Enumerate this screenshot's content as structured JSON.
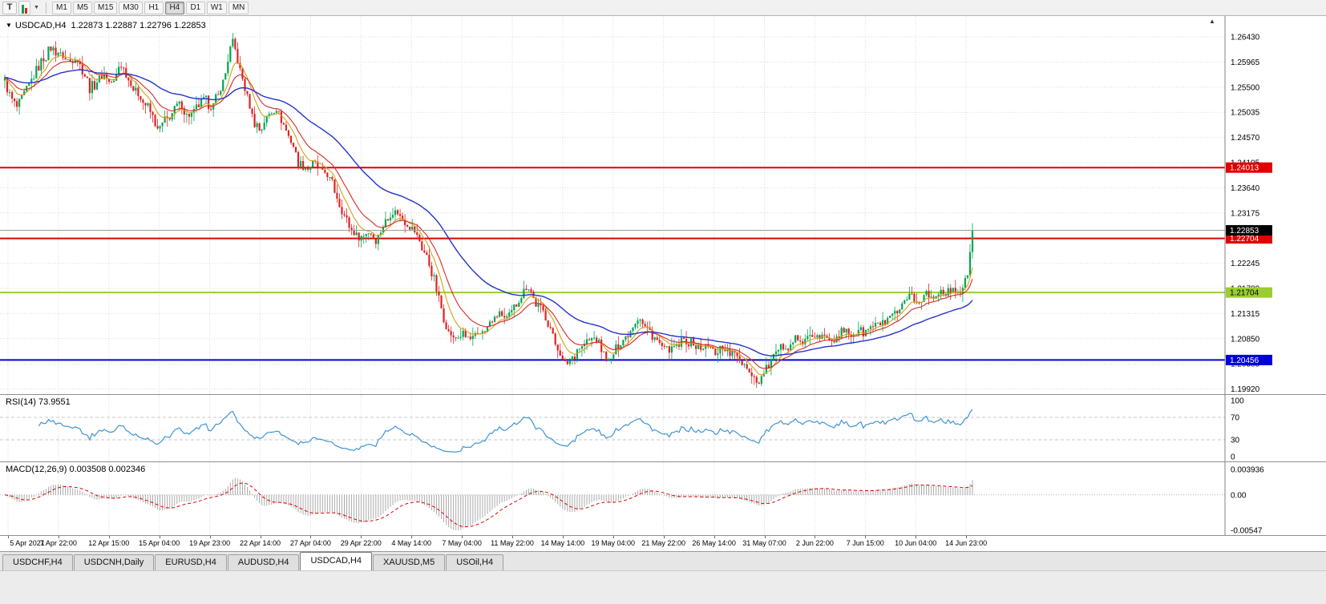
{
  "toolbar": {
    "text_tool": "T",
    "dropdown_icon": "▼",
    "timeframes": [
      "M1",
      "M5",
      "M15",
      "M30",
      "H1",
      "H4",
      "D1",
      "W1",
      "MN"
    ],
    "active_timeframe": "H4"
  },
  "chart": {
    "dropdown_icon": "▼",
    "symbol": "USDCAD,H4",
    "ohlc": "1.22873 1.22887 1.22796 1.22853"
  },
  "price_axis": {
    "labels": [
      "1.26430",
      "1.25965",
      "1.25500",
      "1.25035",
      "1.24570",
      "1.24105",
      "1.23640",
      "1.23175",
      "1.22710",
      "1.22245",
      "1.21780",
      "1.21315",
      "1.20850",
      "1.20385",
      "1.19920"
    ],
    "top_value": 1.2643,
    "step_value": 0.00465
  },
  "hlines": [
    {
      "label": "1.24013",
      "value": 1.24013,
      "color": "#e00000",
      "text_color": "#ffffff"
    },
    {
      "label": "1.22704",
      "value": 1.22704,
      "color": "#e00000",
      "text_color": "#ffffff"
    },
    {
      "label": "1.21704",
      "value": 1.21704,
      "color": "#9acd32",
      "text_color": "#000000"
    },
    {
      "label": "1.20456",
      "value": 1.20456,
      "color": "#0000dd",
      "text_color": "#ffffff"
    }
  ],
  "current_price": {
    "label": "1.22853",
    "value": 1.22853
  },
  "rsi": {
    "label": "RSI(14) 73.9551",
    "period": 14,
    "current": 73.9551,
    "scale_labels": [
      "100",
      "70",
      "30",
      "0"
    ],
    "scale_values": [
      100,
      70,
      30,
      0
    ],
    "levels": [
      70,
      30
    ]
  },
  "macd": {
    "label": "MACD(12,26,9) 0.003508 0.002346",
    "fast": 12,
    "slow": 26,
    "signal": 9,
    "current": 0.003508,
    "signal_current": 0.002346,
    "scale_max": "0.003936",
    "scale_zero": "0.00",
    "scale_min": "-0.00547",
    "max_value": 0.003936,
    "min_value": -0.00547
  },
  "time_axis": [
    "5 Apr 2021",
    "7 Apr 22:00",
    "12 Apr 15:00",
    "15 Apr 04:00",
    "19 Apr 23:00",
    "22 Apr 14:00",
    "27 Apr 04:00",
    "29 Apr 22:00",
    "4 May 14:00",
    "7 May 04:00",
    "11 May 22:00",
    "14 May 14:00",
    "19 May 04:00",
    "21 May 22:00",
    "26 May 14:00",
    "31 May 07:00",
    "2 Jun 22:00",
    "7 Jun 15:00",
    "10 Jun 04:00",
    "14 Jun 23:00"
  ],
  "tabs": [
    "USDCHF,H4",
    "USDCNH,Daily",
    "EURUSD,H4",
    "AUDUSD,H4",
    "USDCAD,H4",
    "XAUUSD,M5",
    "USOil,H4"
  ],
  "active_tab": "USDCAD,H4",
  "colors": {
    "bull": "#00a651",
    "bear": "#dd2222",
    "ma_fast": "#d4a017",
    "ma_med": "#d42a2a",
    "ma_slow": "#2233cc",
    "grid": "#dcdcdc",
    "price_line": "#9a9a9a",
    "macd_hist": "#aaaaaa",
    "macd_signal": "#dd0000",
    "rsi_line": "#3f94d6"
  },
  "chart_data": {
    "type": "candlestick",
    "symbol": "USDCAD",
    "timeframe": "H4",
    "candles": 400,
    "last_close": 1.22853,
    "visible_range": {
      "price_min": 1.1992,
      "price_max": 1.2648,
      "time_start": "5 Apr 2021",
      "time_end": "15 Jun 2021"
    },
    "moving_averages": [
      {
        "name": "fast",
        "period": 8,
        "color": "#d4a017"
      },
      {
        "name": "medium",
        "period": 16,
        "color": "#d42a2a"
      },
      {
        "name": "slow",
        "period": 50,
        "color": "#2233cc"
      }
    ],
    "indicators": {
      "rsi_current": 73.9551,
      "macd_current": 0.003508,
      "macd_signal_current": 0.002346
    },
    "price_path": [
      [
        0.0,
        1.256
      ],
      [
        0.006,
        1.2535
      ],
      [
        0.012,
        1.2508
      ],
      [
        0.02,
        1.254
      ],
      [
        0.03,
        1.2572
      ],
      [
        0.04,
        1.2605
      ],
      [
        0.048,
        1.2622
      ],
      [
        0.056,
        1.2615
      ],
      [
        0.064,
        1.2595
      ],
      [
        0.072,
        1.2608
      ],
      [
        0.08,
        1.2585
      ],
      [
        0.088,
        1.2548
      ],
      [
        0.096,
        1.2562
      ],
      [
        0.104,
        1.2572
      ],
      [
        0.112,
        1.2552
      ],
      [
        0.119,
        1.2598
      ],
      [
        0.127,
        1.2568
      ],
      [
        0.134,
        1.2545
      ],
      [
        0.142,
        1.2528
      ],
      [
        0.15,
        1.2505
      ],
      [
        0.158,
        1.2472
      ],
      [
        0.166,
        1.2488
      ],
      [
        0.174,
        1.2508
      ],
      [
        0.182,
        1.2518
      ],
      [
        0.19,
        1.2495
      ],
      [
        0.198,
        1.2512
      ],
      [
        0.206,
        1.2528
      ],
      [
        0.214,
        1.2515
      ],
      [
        0.222,
        1.254
      ],
      [
        0.23,
        1.2592
      ],
      [
        0.235,
        1.2638
      ],
      [
        0.241,
        1.2598
      ],
      [
        0.248,
        1.2548
      ],
      [
        0.256,
        1.2492
      ],
      [
        0.264,
        1.247
      ],
      [
        0.272,
        1.2498
      ],
      [
        0.28,
        1.2512
      ],
      [
        0.288,
        1.2482
      ],
      [
        0.296,
        1.2452
      ],
      [
        0.304,
        1.2408
      ],
      [
        0.312,
        1.2398
      ],
      [
        0.32,
        1.2412
      ],
      [
        0.328,
        1.2392
      ],
      [
        0.336,
        1.2382
      ],
      [
        0.344,
        1.2342
      ],
      [
        0.352,
        1.2308
      ],
      [
        0.36,
        1.2282
      ],
      [
        0.368,
        1.2272
      ],
      [
        0.376,
        1.2282
      ],
      [
        0.384,
        1.227
      ],
      [
        0.392,
        1.2295
      ],
      [
        0.4,
        1.2322
      ],
      [
        0.408,
        1.2315
      ],
      [
        0.416,
        1.2295
      ],
      [
        0.424,
        1.2282
      ],
      [
        0.432,
        1.2248
      ],
      [
        0.44,
        1.2218
      ],
      [
        0.448,
        1.2162
      ],
      [
        0.456,
        1.2108
      ],
      [
        0.464,
        1.2082
      ],
      [
        0.472,
        1.2092
      ],
      [
        0.48,
        1.2082
      ],
      [
        0.488,
        1.2088
      ],
      [
        0.496,
        1.2102
      ],
      [
        0.504,
        1.2118
      ],
      [
        0.512,
        1.2132
      ],
      [
        0.52,
        1.2122
      ],
      [
        0.528,
        1.2145
      ],
      [
        0.536,
        1.2172
      ],
      [
        0.541,
        1.2185
      ],
      [
        0.548,
        1.2152
      ],
      [
        0.556,
        1.2138
      ],
      [
        0.564,
        1.2102
      ],
      [
        0.572,
        1.2065
      ],
      [
        0.579,
        1.2035
      ],
      [
        0.586,
        1.2052
      ],
      [
        0.594,
        1.2068
      ],
      [
        0.602,
        1.2078
      ],
      [
        0.61,
        1.2088
      ],
      [
        0.618,
        1.2062
      ],
      [
        0.625,
        1.204
      ],
      [
        0.632,
        1.2068
      ],
      [
        0.64,
        1.2082
      ],
      [
        0.648,
        1.2105
      ],
      [
        0.655,
        1.2125
      ],
      [
        0.662,
        1.2108
      ],
      [
        0.67,
        1.2088
      ],
      [
        0.678,
        1.2072
      ],
      [
        0.686,
        1.2062
      ],
      [
        0.694,
        1.2068
      ],
      [
        0.702,
        1.2082
      ],
      [
        0.71,
        1.2078
      ],
      [
        0.718,
        1.2065
      ],
      [
        0.726,
        1.2072
      ],
      [
        0.734,
        1.2062
      ],
      [
        0.742,
        1.207
      ],
      [
        0.75,
        1.2058
      ],
      [
        0.758,
        1.2048
      ],
      [
        0.766,
        1.2035
      ],
      [
        0.774,
        1.2012
      ],
      [
        0.78,
        1.2002
      ],
      [
        0.786,
        1.2028
      ],
      [
        0.794,
        1.2052
      ],
      [
        0.802,
        1.2065
      ],
      [
        0.81,
        1.2075
      ],
      [
        0.818,
        1.2085
      ],
      [
        0.826,
        1.2078
      ],
      [
        0.834,
        1.209
      ],
      [
        0.842,
        1.2082
      ],
      [
        0.85,
        1.2092
      ],
      [
        0.858,
        1.2088
      ],
      [
        0.866,
        1.2098
      ],
      [
        0.874,
        1.209
      ],
      [
        0.882,
        1.2102
      ],
      [
        0.89,
        1.2096
      ],
      [
        0.898,
        1.2108
      ],
      [
        0.906,
        1.2112
      ],
      [
        0.914,
        1.212
      ],
      [
        0.922,
        1.2132
      ],
      [
        0.93,
        1.2148
      ],
      [
        0.938,
        1.2165
      ],
      [
        0.945,
        1.2152
      ],
      [
        0.952,
        1.2172
      ],
      [
        0.959,
        1.2158
      ],
      [
        0.966,
        1.2178
      ],
      [
        0.973,
        1.217
      ],
      [
        0.98,
        1.2182
      ],
      [
        0.986,
        1.2172
      ],
      [
        0.991,
        1.2178
      ],
      [
        0.995,
        1.2205
      ],
      [
        1.0,
        1.22853
      ]
    ]
  }
}
